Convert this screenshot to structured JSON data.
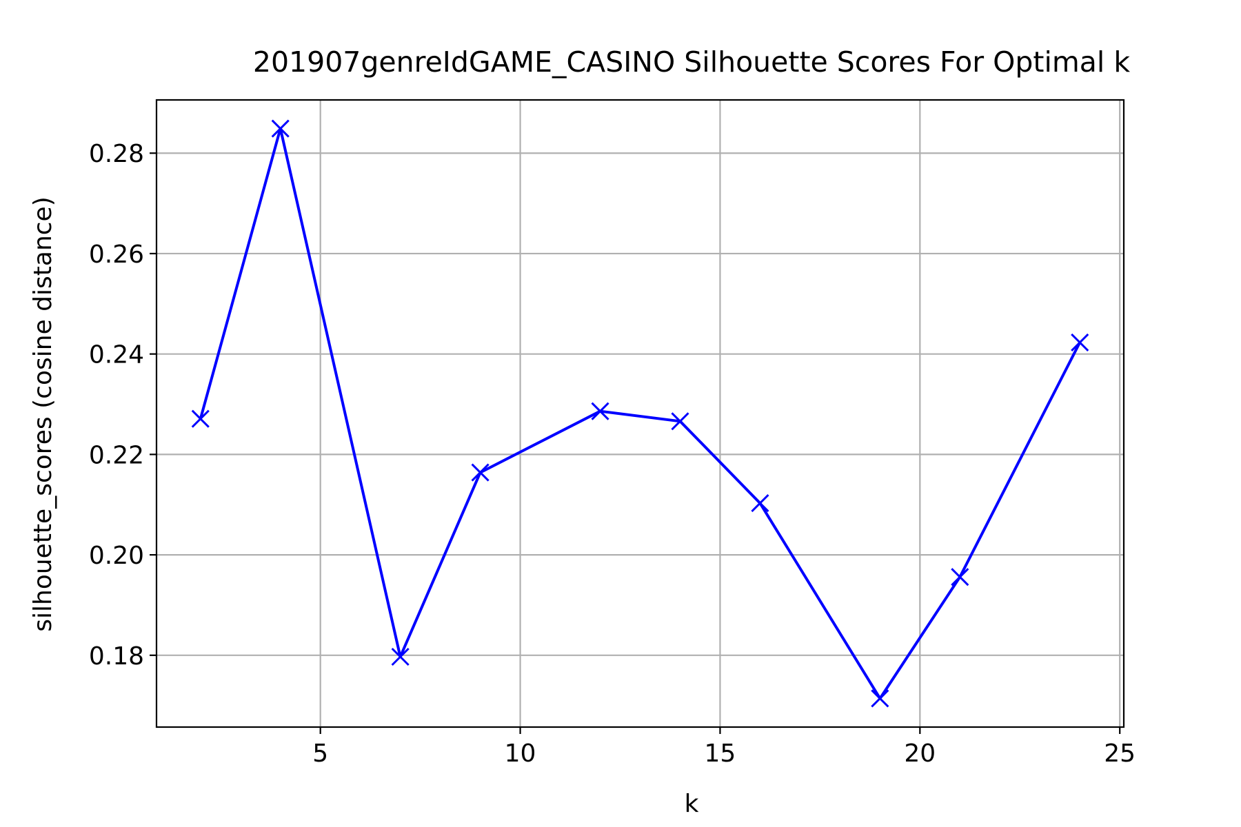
{
  "chart_data": {
    "type": "line",
    "title": "201907genreIdGAME_CASINO Silhouette Scores For Optimal k",
    "xlabel": "k",
    "ylabel": "silhouette_scores (cosine distance)",
    "xlim": [
      0.9,
      25.1
    ],
    "ylim": [
      0.1657,
      0.2906
    ],
    "xticks": [
      5,
      10,
      15,
      20,
      25
    ],
    "yticks": [
      0.18,
      0.2,
      0.22,
      0.24,
      0.26,
      0.28
    ],
    "ytick_labels": [
      "0.18",
      "0.20",
      "0.22",
      "0.24",
      "0.26",
      "0.28"
    ],
    "grid": true,
    "series": [
      {
        "color": "#0000ff",
        "marker": "x",
        "x": [
          2,
          4,
          7,
          9,
          12,
          14,
          16,
          19,
          21,
          24
        ],
        "values": [
          0.2271,
          0.2849,
          0.1797,
          0.2164,
          0.2286,
          0.2266,
          0.2103,
          0.1714,
          0.1956,
          0.2423
        ]
      }
    ]
  }
}
